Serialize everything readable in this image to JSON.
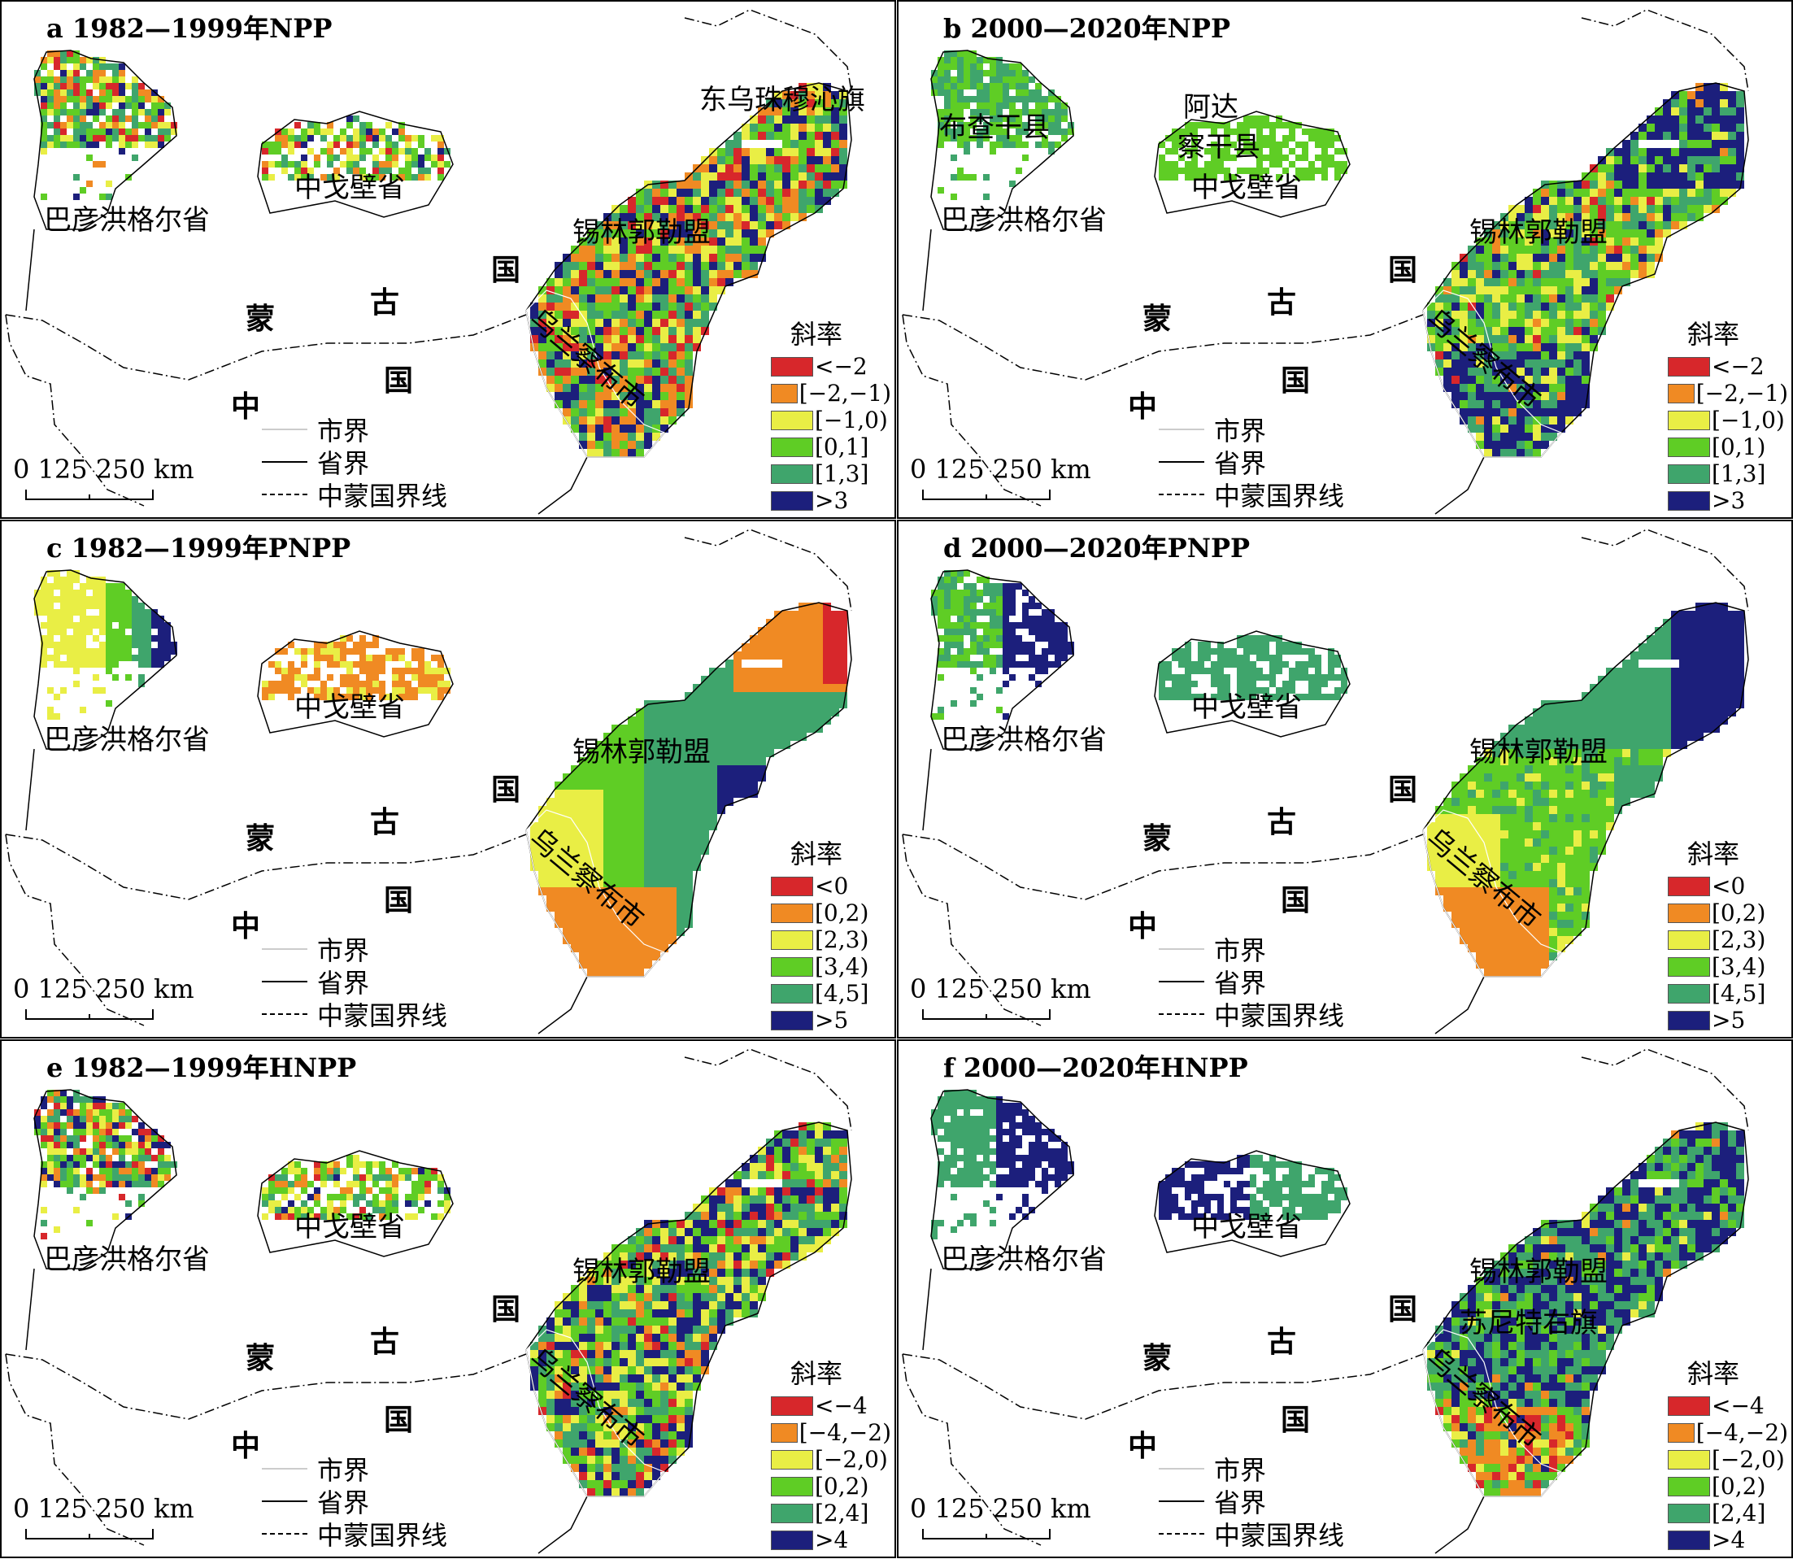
{
  "figure": {
    "panels": [
      {
        "title": "a 1982—1999年NPP",
        "mode": "npp",
        "labels": {
          "province_bayan": "巴彦洪格尔省",
          "province_gobi": "中戈壁省",
          "region_xilin": "锡林郭勒盟",
          "region_wulan": "乌兰察布市",
          "country_meng": "蒙",
          "country_gu": "古",
          "country_guo": "国",
          "country_zhong": "中",
          "country_guo2": "国",
          "extra1": "东乌珠穆沁旗",
          "extra2": "",
          "extra3": ""
        },
        "legend": {
          "title": "斜率",
          "items": [
            "<−2",
            "[−2,−1)",
            "[−1,0)",
            "[0,1]",
            "[1,3]",
            ">3"
          ]
        }
      },
      {
        "title": "b 2000—2020年NPP",
        "mode": "npp2",
        "labels": {
          "province_bayan": "巴彦洪格尔省",
          "province_gobi": "中戈壁省",
          "region_xilin": "锡林郭勒盟",
          "region_wulan": "乌兰察布市",
          "country_meng": "蒙",
          "country_gu": "古",
          "country_guo": "国",
          "country_zhong": "中",
          "country_guo2": "国",
          "extra1": "布查干县",
          "extra2": "阿达",
          "extra3": "察干县"
        },
        "legend": {
          "title": "斜率",
          "items": [
            "<−2",
            "[−2,−1)",
            "[−1,0)",
            "[0,1)",
            "[1,3]",
            ">3"
          ]
        }
      },
      {
        "title": "c 1982—1999年PNPP",
        "mode": "pnpp",
        "labels": {
          "province_bayan": "巴彦洪格尔省",
          "province_gobi": "中戈壁省",
          "region_xilin": "锡林郭勒盟",
          "region_wulan": "乌兰察布市",
          "country_meng": "蒙",
          "country_gu": "古",
          "country_guo": "国",
          "country_zhong": "中",
          "country_guo2": "国",
          "extra1": "",
          "extra2": "",
          "extra3": ""
        },
        "legend": {
          "title": "斜率",
          "items": [
            "<0",
            "[0,2)",
            "[2,3)",
            "[3,4)",
            "[4,5]",
            ">5"
          ]
        }
      },
      {
        "title": "d 2000—2020年PNPP",
        "mode": "pnpp2",
        "labels": {
          "province_bayan": "巴彦洪格尔省",
          "province_gobi": "中戈壁省",
          "region_xilin": "锡林郭勒盟",
          "region_wulan": "乌兰察布市",
          "country_meng": "蒙",
          "country_gu": "古",
          "country_guo": "国",
          "country_zhong": "中",
          "country_guo2": "国",
          "extra1": "",
          "extra2": "",
          "extra3": ""
        },
        "legend": {
          "title": "斜率",
          "items": [
            "<0",
            "[0,2)",
            "[2,3)",
            "[3,4)",
            "[4,5]",
            ">5"
          ]
        }
      },
      {
        "title": "e 1982—1999年HNPP",
        "mode": "hnpp",
        "labels": {
          "province_bayan": "巴彦洪格尔省",
          "province_gobi": "中戈壁省",
          "region_xilin": "锡林郭勒盟",
          "region_wulan": "乌兰察布市",
          "country_meng": "蒙",
          "country_gu": "古",
          "country_guo": "国",
          "country_zhong": "中",
          "country_guo2": "国",
          "extra1": "",
          "extra2": "",
          "extra3": ""
        },
        "legend": {
          "title": "斜率",
          "items": [
            "<−4",
            "[−4,−2)",
            "[−2,0)",
            "[0,2)",
            "[2,4]",
            ">4"
          ]
        }
      },
      {
        "title": "f 2000—2020年HNPP",
        "mode": "hnpp2",
        "labels": {
          "province_bayan": "巴彦洪格尔省",
          "province_gobi": "中戈壁省",
          "region_xilin": "锡林郭勒盟",
          "region_wulan": "乌兰察布市",
          "country_meng": "蒙",
          "country_gu": "古",
          "country_guo": "国",
          "country_zhong": "中",
          "country_guo2": "国",
          "extra1": "苏尼特右旗",
          "extra2": "",
          "extra3": ""
        },
        "legend": {
          "title": "斜率",
          "items": [
            "<−4",
            "[−4,−2)",
            "[−2,0)",
            "[0,2)",
            "[2,4]",
            ">4"
          ]
        }
      }
    ],
    "legend_colors": [
      "#d7272b",
      "#f08a23",
      "#e9ee45",
      "#5fcd25",
      "#3fa56c",
      "#1c1f7c"
    ],
    "line_legend": {
      "city": "市界",
      "province": "省界",
      "border": "中蒙国界线"
    },
    "scale": {
      "text": "0   125 250 km"
    }
  }
}
